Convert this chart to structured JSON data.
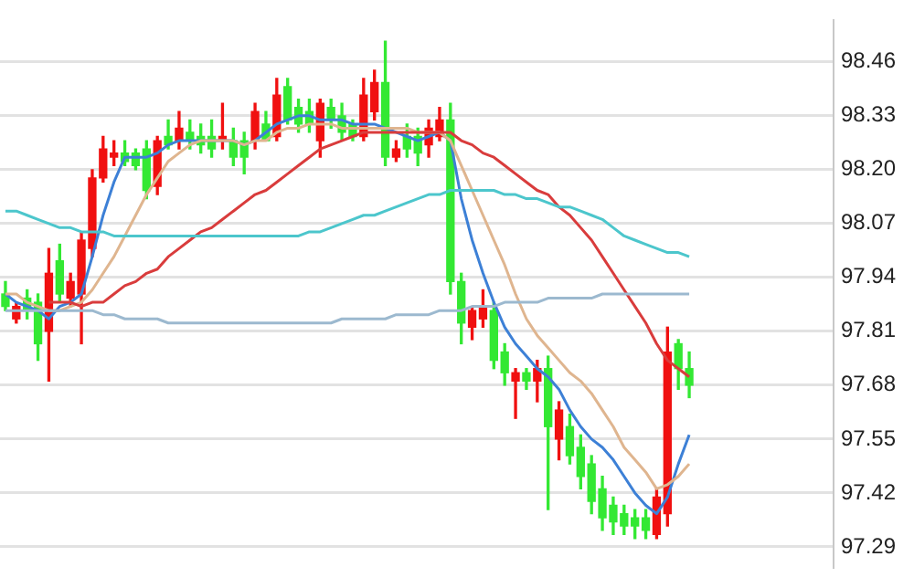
{
  "chart_data": {
    "type": "candlestick",
    "categories": [
      null,
      null,
      null,
      null,
      null,
      null,
      null,
      null,
      null,
      null,
      null,
      null,
      null,
      null,
      null,
      null,
      null,
      null,
      null,
      null,
      null,
      null,
      null,
      null,
      null,
      null,
      null,
      null,
      null,
      null,
      null,
      null,
      null,
      null,
      null,
      null,
      null,
      null,
      null,
      null,
      null,
      null,
      null,
      null,
      null,
      null,
      null,
      null,
      null,
      null,
      null,
      null,
      null,
      null,
      null,
      null,
      null,
      null,
      null,
      null,
      null,
      null,
      null,
      null
    ],
    "ohlc": [
      [
        97.9,
        97.93,
        97.86,
        97.87
      ],
      [
        97.84,
        97.88,
        97.83,
        97.87
      ],
      [
        97.89,
        97.91,
        97.84,
        97.86
      ],
      [
        97.88,
        97.9,
        97.74,
        97.78
      ],
      [
        97.81,
        98.01,
        97.69,
        97.95
      ],
      [
        97.98,
        98.02,
        97.88,
        97.9
      ],
      [
        97.89,
        97.95,
        97.87,
        97.93
      ],
      [
        97.9,
        98.05,
        97.78,
        98.03
      ],
      [
        98.01,
        98.2,
        97.99,
        98.18
      ],
      [
        98.18,
        98.28,
        98.17,
        98.25
      ],
      [
        98.23,
        98.27,
        98.21,
        98.24
      ],
      [
        98.24,
        98.27,
        98.21,
        98.22
      ],
      [
        98.24,
        98.25,
        98.2,
        98.21
      ],
      [
        98.25,
        98.27,
        98.13,
        98.15
      ],
      [
        98.16,
        98.28,
        98.14,
        98.27
      ],
      [
        98.28,
        98.32,
        98.25,
        98.26
      ],
      [
        98.27,
        98.34,
        98.25,
        98.3
      ],
      [
        98.29,
        98.32,
        98.25,
        98.27
      ],
      [
        98.28,
        98.31,
        98.24,
        98.26
      ],
      [
        98.28,
        98.32,
        98.23,
        98.25
      ],
      [
        98.27,
        98.36,
        98.25,
        98.28
      ],
      [
        98.27,
        98.3,
        98.21,
        98.23
      ],
      [
        98.27,
        98.29,
        98.19,
        98.23
      ],
      [
        98.27,
        98.36,
        98.25,
        98.34
      ],
      [
        98.31,
        98.34,
        98.27,
        98.27
      ],
      [
        98.28,
        98.42,
        98.27,
        98.38
      ],
      [
        98.4,
        98.42,
        98.31,
        98.32
      ],
      [
        98.35,
        98.37,
        98.29,
        98.31
      ],
      [
        98.34,
        98.37,
        98.29,
        98.31
      ],
      [
        98.27,
        98.37,
        98.23,
        98.36
      ],
      [
        98.35,
        98.37,
        98.3,
        98.32
      ],
      [
        98.33,
        98.36,
        98.27,
        98.29
      ],
      [
        98.31,
        98.32,
        98.27,
        98.28
      ],
      [
        98.28,
        98.42,
        98.27,
        98.38
      ],
      [
        98.34,
        98.44,
        98.32,
        98.41
      ],
      [
        98.41,
        98.51,
        98.21,
        98.23
      ],
      [
        98.23,
        98.27,
        98.22,
        98.25
      ],
      [
        98.28,
        98.31,
        98.23,
        98.25
      ],
      [
        98.28,
        98.3,
        98.21,
        98.24
      ],
      [
        98.26,
        98.32,
        98.23,
        98.3
      ],
      [
        98.28,
        98.35,
        98.27,
        98.32
      ],
      [
        98.32,
        98.36,
        97.9,
        97.93
      ],
      [
        97.93,
        97.95,
        97.78,
        97.83
      ],
      [
        97.82,
        97.87,
        97.79,
        97.86
      ],
      [
        97.84,
        97.91,
        97.82,
        97.87
      ],
      [
        97.86,
        97.88,
        97.72,
        97.74
      ],
      [
        97.76,
        97.78,
        97.68,
        97.71
      ],
      [
        97.69,
        97.72,
        97.6,
        97.71
      ],
      [
        97.71,
        97.72,
        97.67,
        97.69
      ],
      [
        97.69,
        97.74,
        97.64,
        97.72
      ],
      [
        97.72,
        97.75,
        97.38,
        97.58
      ],
      [
        97.55,
        97.64,
        97.5,
        97.62
      ],
      [
        97.58,
        97.61,
        97.49,
        97.51
      ],
      [
        97.53,
        97.56,
        97.43,
        97.46
      ],
      [
        97.49,
        97.51,
        97.37,
        97.4
      ],
      [
        97.43,
        97.46,
        97.33,
        97.36
      ],
      [
        97.39,
        97.41,
        97.32,
        97.35
      ],
      [
        97.37,
        97.39,
        97.32,
        97.34
      ],
      [
        97.36,
        97.38,
        97.31,
        97.34
      ],
      [
        97.36,
        97.38,
        97.31,
        97.33
      ],
      [
        97.32,
        97.43,
        97.31,
        97.41
      ],
      [
        97.37,
        97.82,
        97.34,
        97.76
      ],
      [
        97.78,
        97.79,
        97.67,
        97.72
      ],
      [
        97.72,
        97.76,
        97.65,
        97.68
      ]
    ],
    "colors": [
      "#33e833",
      "#f01010",
      "#33e833",
      "#33e833",
      "#f01010",
      "#33e833",
      "#f01010",
      "#f01010",
      "#f01010",
      "#f01010",
      "#f01010",
      "#33e833",
      "#33e833",
      "#33e833",
      "#f01010",
      "#33e833",
      "#f01010",
      "#33e833",
      "#33e833",
      "#33e833",
      "#f01010",
      "#33e833",
      "#33e833",
      "#f01010",
      "#33e833",
      "#f01010",
      "#33e833",
      "#33e833",
      "#33e833",
      "#f01010",
      "#33e833",
      "#33e833",
      "#33e833",
      "#f01010",
      "#f01010",
      "#33e833",
      "#f01010",
      "#33e833",
      "#33e833",
      "#f01010",
      "#f01010",
      "#33e833",
      "#33e833",
      "#f01010",
      "#f01010",
      "#33e833",
      "#33e833",
      "#f01010",
      "#33e833",
      "#f01010",
      "#33e833",
      "#f01010",
      "#33e833",
      "#33e833",
      "#33e833",
      "#33e833",
      "#33e833",
      "#33e833",
      "#33e833",
      "#33e833",
      "#f01010",
      "#f01010",
      "#33e833",
      "#33e833"
    ],
    "series": [
      {
        "type": "line",
        "color": "#9cb9cf",
        "values": [
          97.86,
          97.86,
          97.86,
          97.86,
          97.86,
          97.86,
          97.86,
          97.86,
          97.86,
          97.85,
          97.85,
          97.84,
          97.84,
          97.84,
          97.84,
          97.83,
          97.83,
          97.83,
          97.83,
          97.83,
          97.83,
          97.83,
          97.83,
          97.83,
          97.83,
          97.83,
          97.83,
          97.83,
          97.83,
          97.83,
          97.83,
          97.84,
          97.84,
          97.84,
          97.84,
          97.84,
          97.85,
          97.85,
          97.85,
          97.85,
          97.86,
          97.86,
          97.86,
          97.87,
          97.87,
          97.87,
          97.88,
          97.88,
          97.88,
          97.88,
          97.89,
          97.89,
          97.89,
          97.89,
          97.89,
          97.9,
          97.9,
          97.9,
          97.9,
          97.9,
          97.9,
          97.9,
          97.9,
          97.9
        ]
      },
      {
        "type": "line",
        "color": "#4cc6cc",
        "values": [
          98.1,
          98.1,
          98.09,
          98.08,
          98.07,
          98.06,
          98.06,
          98.05,
          98.05,
          98.05,
          98.04,
          98.04,
          98.04,
          98.04,
          98.04,
          98.04,
          98.04,
          98.04,
          98.04,
          98.04,
          98.04,
          98.04,
          98.04,
          98.04,
          98.04,
          98.04,
          98.04,
          98.04,
          98.05,
          98.05,
          98.06,
          98.07,
          98.08,
          98.09,
          98.09,
          98.1,
          98.11,
          98.12,
          98.13,
          98.14,
          98.14,
          98.15,
          98.15,
          98.15,
          98.15,
          98.15,
          98.14,
          98.14,
          98.13,
          98.13,
          98.12,
          98.11,
          98.11,
          98.1,
          98.09,
          98.08,
          98.06,
          98.04,
          98.03,
          98.02,
          98.01,
          98.0,
          98.0,
          97.99
        ]
      },
      {
        "type": "line",
        "color": "#d93c3c",
        "values": [
          null,
          null,
          null,
          null,
          97.88,
          97.88,
          97.88,
          97.87,
          97.88,
          97.88,
          97.9,
          97.92,
          97.93,
          97.95,
          97.96,
          97.99,
          98.01,
          98.03,
          98.05,
          98.06,
          98.08,
          98.1,
          98.12,
          98.14,
          98.15,
          98.17,
          98.19,
          98.21,
          98.23,
          98.25,
          98.26,
          98.27,
          98.28,
          98.29,
          98.29,
          98.29,
          98.29,
          98.29,
          98.29,
          98.29,
          98.29,
          98.29,
          98.27,
          98.26,
          98.24,
          98.23,
          98.21,
          98.19,
          98.17,
          98.15,
          98.14,
          98.11,
          98.09,
          98.06,
          98.03,
          97.99,
          97.95,
          97.91,
          97.87,
          97.83,
          97.78,
          97.74,
          97.72,
          97.7
        ]
      },
      {
        "type": "line",
        "color": "#dfb58f",
        "values": [
          97.9,
          97.9,
          97.88,
          97.87,
          97.86,
          97.86,
          97.87,
          97.88,
          97.91,
          97.95,
          97.99,
          98.04,
          98.09,
          98.14,
          98.18,
          98.22,
          98.24,
          98.26,
          98.27,
          98.27,
          98.27,
          98.27,
          98.26,
          98.27,
          98.27,
          98.29,
          98.3,
          98.3,
          98.31,
          98.31,
          98.31,
          98.3,
          98.3,
          98.3,
          98.3,
          98.3,
          98.3,
          98.3,
          98.29,
          98.29,
          98.29,
          98.27,
          98.21,
          98.15,
          98.09,
          98.03,
          97.97,
          97.9,
          97.84,
          97.8,
          97.77,
          97.74,
          97.71,
          97.69,
          97.66,
          97.62,
          97.58,
          97.53,
          97.5,
          97.47,
          97.43,
          97.44,
          97.46,
          97.49
        ]
      },
      {
        "type": "line",
        "color": "#3d80d6",
        "values": [
          97.9,
          97.88,
          97.87,
          97.86,
          97.84,
          97.87,
          97.88,
          97.9,
          97.99,
          98.09,
          98.17,
          98.23,
          98.23,
          98.23,
          98.24,
          98.26,
          98.27,
          98.27,
          98.27,
          98.27,
          98.27,
          98.27,
          98.26,
          98.27,
          98.29,
          98.31,
          98.32,
          98.33,
          98.33,
          98.32,
          98.32,
          98.32,
          98.31,
          98.31,
          98.31,
          98.3,
          98.29,
          98.28,
          98.27,
          98.28,
          98.29,
          98.27,
          98.13,
          98.03,
          97.95,
          97.88,
          97.82,
          97.78,
          97.75,
          97.72,
          97.7,
          97.67,
          97.62,
          97.58,
          97.55,
          97.53,
          97.5,
          97.46,
          97.42,
          97.39,
          97.37,
          97.41,
          97.49,
          97.56
        ]
      }
    ],
    "ylim": [
      97.24,
      98.56
    ],
    "yticks": [
      97.29,
      97.42,
      97.55,
      97.68,
      97.81,
      97.94,
      98.07,
      {
        "value": 98.2,
        "label": "98.20"
      },
      98.33,
      98.46
    ],
    "grid": "y",
    "tick_labels": "y",
    "marker": "none"
  }
}
